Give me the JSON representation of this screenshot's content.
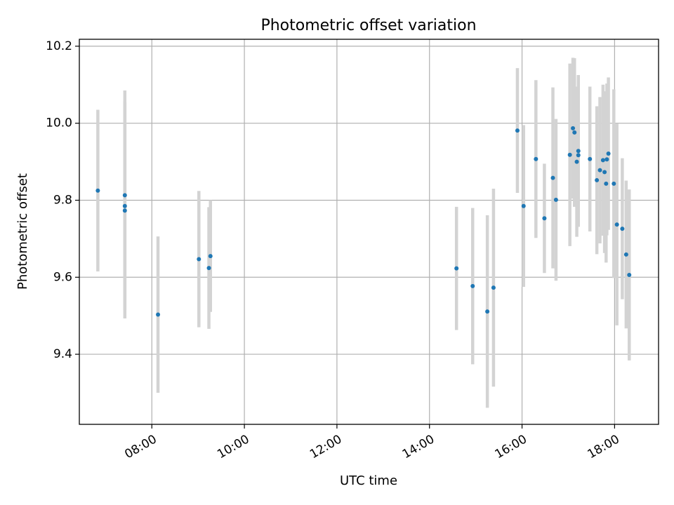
{
  "chart_data": {
    "type": "scatter",
    "title": "Photometric offset variation",
    "xlabel": "UTC time",
    "ylabel": "Photometric offset",
    "x_unit": "hours",
    "xlim": [
      "06:26",
      "18:57"
    ],
    "ylim": [
      9.218,
      10.218
    ],
    "xticks": [
      "08:00",
      "10:00",
      "12:00",
      "14:00",
      "16:00",
      "18:00"
    ],
    "yticks": [
      "9.4",
      "9.6",
      "9.8",
      "10.0",
      "10.2"
    ],
    "grid": true,
    "colors": {
      "point": "#1f77b4",
      "errorbar": "#d3d3d3",
      "grid": "#b0b0b0"
    },
    "points": [
      {
        "x": "06:50",
        "y": 9.825,
        "err": 0.21
      },
      {
        "x": "07:25",
        "y": 9.813,
        "err": 0.272
      },
      {
        "x": "07:25",
        "y": 9.785,
        "err": 0.27
      },
      {
        "x": "07:25",
        "y": 9.773,
        "err": 0.28
      },
      {
        "x": "08:08",
        "y": 9.503,
        "err": 0.203
      },
      {
        "x": "09:01",
        "y": 9.647,
        "err": 0.177
      },
      {
        "x": "09:14",
        "y": 9.624,
        "err": 0.158
      },
      {
        "x": "09:16",
        "y": 9.655,
        "err": 0.145
      },
      {
        "x": "14:35",
        "y": 9.623,
        "err": 0.16
      },
      {
        "x": "14:56",
        "y": 9.577,
        "err": 0.203
      },
      {
        "x": "15:15",
        "y": 9.511,
        "err": 0.25
      },
      {
        "x": "15:23",
        "y": 9.573,
        "err": 0.257
      },
      {
        "x": "15:54",
        "y": 9.981,
        "err": 0.162
      },
      {
        "x": "16:02",
        "y": 9.785,
        "err": 0.21
      },
      {
        "x": "16:18",
        "y": 9.907,
        "err": 0.205
      },
      {
        "x": "16:29",
        "y": 9.753,
        "err": 0.142
      },
      {
        "x": "16:40",
        "y": 9.858,
        "err": 0.235
      },
      {
        "x": "16:44",
        "y": 9.801,
        "err": 0.21
      },
      {
        "x": "17:02",
        "y": 9.918,
        "err": 0.237
      },
      {
        "x": "17:06",
        "y": 9.987,
        "err": 0.183
      },
      {
        "x": "17:08",
        "y": 9.976,
        "err": 0.193
      },
      {
        "x": "17:11",
        "y": 9.9,
        "err": 0.195
      },
      {
        "x": "17:13",
        "y": 9.928,
        "err": 0.197
      },
      {
        "x": "17:13",
        "y": 9.917,
        "err": 0.178
      },
      {
        "x": "17:28",
        "y": 9.907,
        "err": 0.188
      },
      {
        "x": "17:37",
        "y": 9.852,
        "err": 0.192
      },
      {
        "x": "17:41",
        "y": 9.878,
        "err": 0.19
      },
      {
        "x": "17:45",
        "y": 9.904,
        "err": 0.196
      },
      {
        "x": "17:47",
        "y": 9.873,
        "err": 0.21
      },
      {
        "x": "17:49",
        "y": 9.843,
        "err": 0.205
      },
      {
        "x": "17:50",
        "y": 9.906,
        "err": 0.197
      },
      {
        "x": "17:52",
        "y": 9.921,
        "err": 0.198
      },
      {
        "x": "17:59",
        "y": 9.843,
        "err": 0.245
      },
      {
        "x": "18:03",
        "y": 9.737,
        "err": 0.262
      },
      {
        "x": "18:10",
        "y": 9.726,
        "err": 0.183
      },
      {
        "x": "18:15",
        "y": 9.659,
        "err": 0.192
      },
      {
        "x": "18:19",
        "y": 9.606,
        "err": 0.222
      }
    ]
  }
}
